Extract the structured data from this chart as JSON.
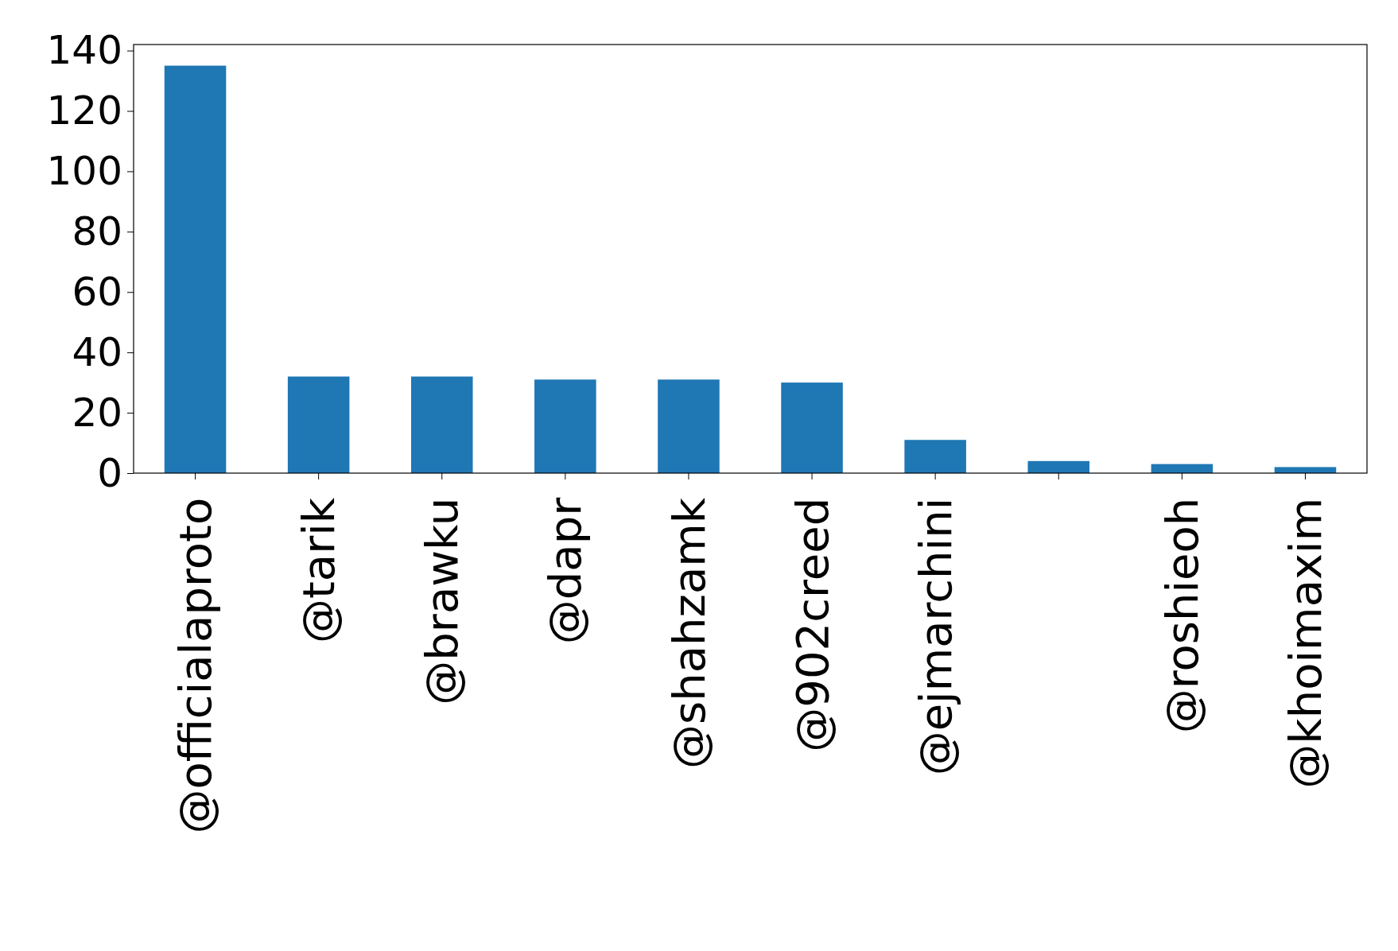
{
  "chart_data": {
    "type": "bar",
    "categories": [
      "@officialaproto",
      "@tarik",
      "@brawku",
      "@dapr",
      "@shahzamk",
      "@902creed",
      "@ejmarchini",
      null,
      "@roshieoh",
      "@khoimaxim"
    ],
    "values": [
      135,
      32,
      32,
      31,
      31,
      30,
      11,
      4,
      3,
      2
    ],
    "color": "#1f77b4",
    "ylim": [
      0,
      142
    ],
    "yticks": [
      0,
      20,
      40,
      60,
      80,
      100,
      120,
      140
    ],
    "grid": false
  }
}
